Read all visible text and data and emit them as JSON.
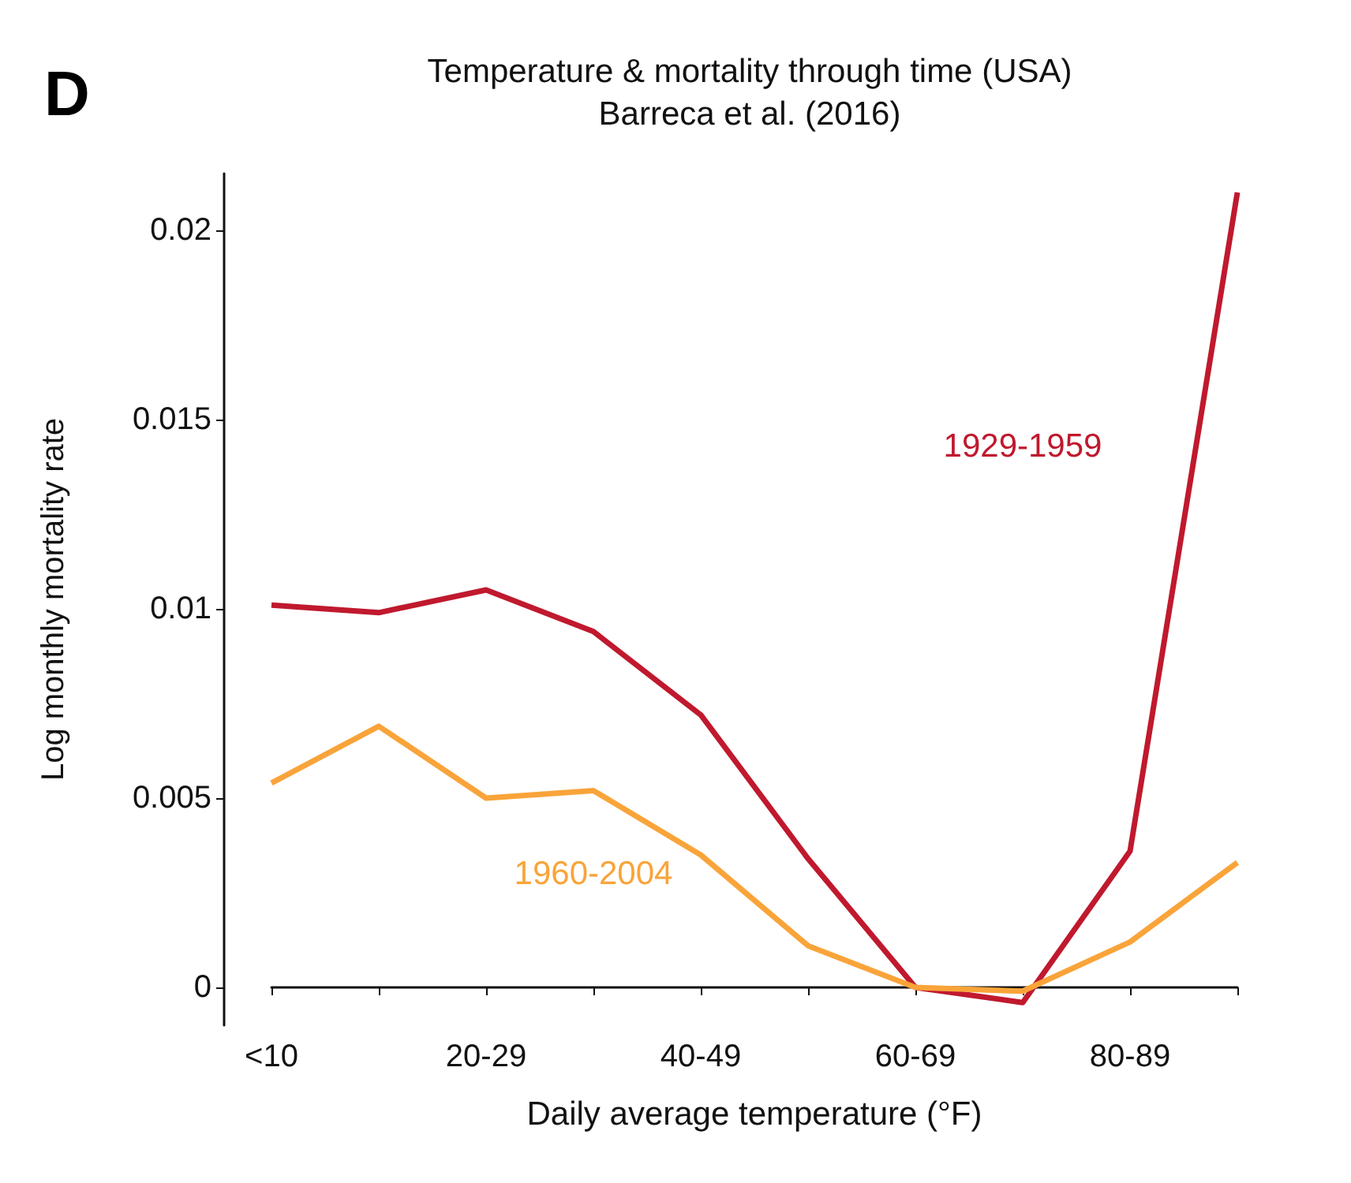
{
  "chart_data": {
    "type": "line",
    "title": "Temperature & mortality through time (USA)",
    "subtitle": "Barreca et al. (2016)",
    "xlabel": "Daily average temperature (°F)",
    "ylabel": "Log monthly mortality rate",
    "annotations": [
      "D"
    ],
    "categories": [
      "<10",
      null,
      "20-29",
      null,
      "40-49",
      null,
      "60-69",
      null,
      "80-89",
      null
    ],
    "series": [
      {
        "name": "1929-1959",
        "color": "#c0192e",
        "values": [
          0.0101,
          0.0099,
          0.0105,
          0.0094,
          0.0072,
          0.0034,
          0,
          -0.0004,
          0.0036,
          0.021
        ]
      },
      {
        "name": "1960-2004",
        "color": "#f9a43a",
        "values": [
          0.0054,
          0.0069,
          0.005,
          0.0052,
          0.0035,
          0.0011,
          0,
          -0.0001,
          0.0012,
          0.0033
        ]
      }
    ],
    "ylim": [
      -0.001,
      0.0215
    ],
    "yticks": [
      0,
      0.005,
      0.01,
      0.015,
      0.02
    ],
    "grid": false,
    "legend": false,
    "marker": "none",
    "line_style": "solid"
  }
}
